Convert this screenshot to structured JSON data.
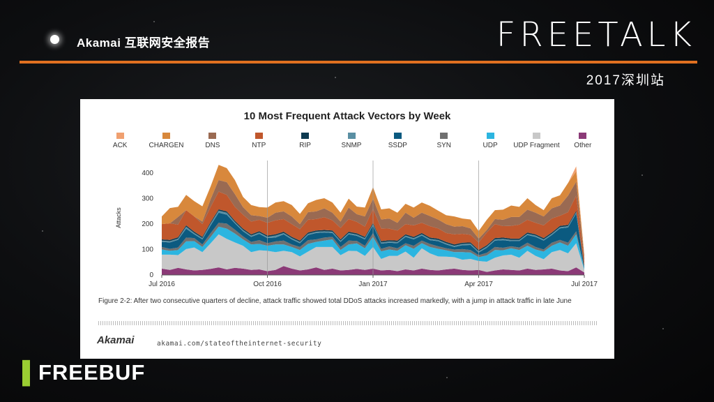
{
  "header": {
    "title": "Akamai 互联网安全报告"
  },
  "brand": {
    "logo": "FREETALK",
    "subtitle": "2017深圳站"
  },
  "footer": {
    "logo": "FREEBUF"
  },
  "chart_data": {
    "type": "area",
    "title": "10 Most Frequent Attack Vectors by Week",
    "ylabel": "Attacks",
    "xlabel": "",
    "ylim": [
      0,
      450
    ],
    "yticks": [
      0,
      100,
      200,
      300,
      400
    ],
    "x_ticks": [
      "Jul 2016",
      "Oct 2016",
      "Jan 2017",
      "Apr 2017",
      "Jul 2017"
    ],
    "x_tick_weeks": [
      0,
      13,
      26,
      39,
      52
    ],
    "grid": "vertical",
    "legend_position": "top",
    "series": [
      {
        "name": "Other",
        "color": "#8b3a77",
        "values": [
          25,
          20,
          28,
          22,
          18,
          20,
          24,
          30,
          22,
          28,
          25,
          20,
          22,
          15,
          20,
          35,
          25,
          18,
          22,
          30,
          20,
          25,
          18,
          20,
          24,
          20,
          25,
          18,
          20,
          15,
          22,
          18,
          25,
          20,
          18,
          22,
          25,
          20,
          18,
          20,
          12,
          18,
          22,
          20,
          18,
          25,
          20,
          22,
          25,
          18,
          15,
          30,
          10
        ]
      },
      {
        "name": "UDP Fragment",
        "color": "#c8c8c8",
        "values": [
          55,
          60,
          50,
          80,
          90,
          70,
          100,
          130,
          120,
          100,
          90,
          70,
          75,
          80,
          70,
          60,
          65,
          55,
          70,
          80,
          90,
          85,
          60,
          75,
          70,
          55,
          85,
          45,
          55,
          60,
          70,
          50,
          80,
          65,
          55,
          50,
          45,
          40,
          45,
          35,
          40,
          50,
          55,
          60,
          50,
          70,
          55,
          40,
          65,
          80,
          70,
          95,
          10
        ]
      },
      {
        "name": "UDP",
        "color": "#2cb5e0",
        "values": [
          20,
          15,
          20,
          30,
          25,
          20,
          25,
          30,
          40,
          35,
          25,
          30,
          25,
          20,
          30,
          25,
          20,
          25,
          30,
          20,
          25,
          30,
          20,
          25,
          30,
          30,
          40,
          30,
          25,
          20,
          25,
          35,
          20,
          25,
          30,
          25,
          20,
          30,
          25,
          15,
          25,
          30,
          20,
          25,
          30,
          20,
          25,
          30,
          25,
          30,
          30,
          35,
          5
        ]
      },
      {
        "name": "SYN",
        "color": "#707070",
        "values": [
          10,
          8,
          10,
          15,
          12,
          10,
          15,
          15,
          20,
          15,
          12,
          10,
          15,
          10,
          12,
          15,
          10,
          12,
          15,
          10,
          12,
          10,
          12,
          15,
          10,
          10,
          15,
          10,
          12,
          10,
          8,
          12,
          10,
          12,
          10,
          8,
          10,
          12,
          10,
          8,
          10,
          12,
          10,
          8,
          10,
          12,
          10,
          8,
          12,
          10,
          12,
          12,
          2
        ]
      },
      {
        "name": "SSDP",
        "color": "#0b5a80",
        "values": [
          20,
          25,
          30,
          35,
          15,
          20,
          30,
          40,
          35,
          25,
          20,
          20,
          25,
          20,
          15,
          25,
          20,
          15,
          20,
          25,
          20,
          15,
          20,
          25,
          20,
          25,
          30,
          20,
          15,
          20,
          25,
          25,
          20,
          15,
          20,
          15,
          10,
          15,
          20,
          10,
          20,
          25,
          30,
          20,
          25,
          30,
          40,
          35,
          30,
          45,
          60,
          70,
          5
        ]
      },
      {
        "name": "SNMP",
        "color": "#5a8fa3",
        "values": [
          5,
          5,
          5,
          8,
          5,
          5,
          8,
          8,
          8,
          5,
          5,
          5,
          5,
          5,
          8,
          5,
          5,
          5,
          5,
          5,
          5,
          5,
          5,
          5,
          5,
          5,
          5,
          5,
          5,
          5,
          5,
          5,
          5,
          5,
          5,
          5,
          5,
          5,
          5,
          5,
          5,
          5,
          5,
          5,
          5,
          5,
          5,
          5,
          5,
          5,
          5,
          5,
          1
        ]
      },
      {
        "name": "RIP",
        "color": "#0d3a50",
        "values": [
          5,
          5,
          5,
          5,
          5,
          5,
          5,
          5,
          5,
          5,
          5,
          5,
          5,
          5,
          5,
          5,
          5,
          5,
          5,
          5,
          5,
          5,
          5,
          5,
          5,
          5,
          5,
          5,
          5,
          5,
          5,
          5,
          5,
          5,
          5,
          5,
          5,
          5,
          5,
          5,
          5,
          5,
          5,
          5,
          5,
          5,
          5,
          5,
          5,
          5,
          5,
          5,
          1
        ]
      },
      {
        "name": "NTP",
        "color": "#c0572c",
        "values": [
          60,
          65,
          50,
          60,
          60,
          50,
          60,
          70,
          65,
          55,
          55,
          50,
          45,
          50,
          55,
          50,
          50,
          45,
          50,
          45,
          50,
          40,
          45,
          50,
          45,
          40,
          55,
          50,
          45,
          40,
          40,
          45,
          40,
          45,
          40,
          35,
          40,
          35,
          30,
          30,
          50,
          55,
          45,
          50,
          55,
          50,
          45,
          50,
          55,
          40,
          50,
          60,
          20
        ]
      },
      {
        "name": "DNS",
        "color": "#9a6a52",
        "values": [
          0,
          0,
          30,
          0,
          0,
          10,
          30,
          45,
          50,
          50,
          30,
          25,
          15,
          20,
          30,
          30,
          30,
          20,
          30,
          30,
          35,
          30,
          25,
          45,
          30,
          40,
          40,
          35,
          40,
          30,
          45,
          30,
          40,
          40,
          35,
          35,
          30,
          30,
          25,
          15,
          10,
          20,
          25,
          35,
          30,
          40,
          40,
          35,
          40,
          40,
          65,
          55,
          15
        ]
      },
      {
        "name": "CHARGEN",
        "color": "#d8883c",
        "values": [
          30,
          60,
          40,
          60,
          60,
          60,
          50,
          60,
          55,
          55,
          40,
          40,
          35,
          40,
          40,
          40,
          45,
          40,
          35,
          45,
          40,
          40,
          35,
          35,
          30,
          35,
          45,
          40,
          40,
          40,
          35,
          40,
          40,
          40,
          35,
          35,
          40,
          30,
          35,
          30,
          40,
          35,
          40,
          45,
          40,
          45,
          30,
          25,
          40,
          40,
          50,
          40,
          10
        ]
      },
      {
        "name": "ACK",
        "color": "#f0a070",
        "values": [
          0,
          0,
          0,
          0,
          0,
          0,
          0,
          0,
          0,
          0,
          0,
          0,
          0,
          0,
          0,
          0,
          0,
          0,
          0,
          0,
          0,
          0,
          0,
          0,
          0,
          0,
          0,
          0,
          0,
          0,
          0,
          0,
          0,
          0,
          0,
          0,
          0,
          0,
          0,
          0,
          0,
          0,
          0,
          0,
          0,
          0,
          0,
          0,
          0,
          0,
          0,
          20,
          0
        ]
      }
    ],
    "legend_order": [
      "ACK",
      "CHARGEN",
      "DNS",
      "NTP",
      "RIP",
      "SNMP",
      "SSDP",
      "SYN",
      "UDP",
      "UDP Fragment",
      "Other"
    ],
    "caption": "Figure 2-2:  After two consecutive quarters of decline, attack traffic showed total DDoS attacks increased markedly, with a jump in attack traffic in late June",
    "source_logo": "Akamai",
    "source_url": "akamai.com/stateoftheinternet-security"
  }
}
